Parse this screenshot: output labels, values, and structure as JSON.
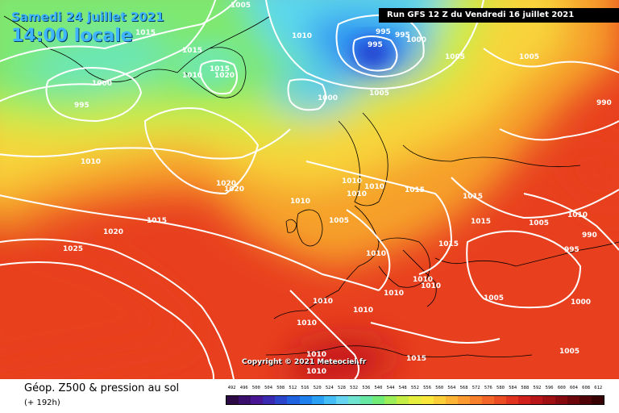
{
  "header": {
    "valid_date": "Samedi 24 juillet 2021",
    "local_time": "14:00 locale",
    "run_info": "Run GFS 12 Z du Vendredi 16 juillet 2021"
  },
  "map": {
    "subject": "Géopotentiel 500 hPa et pression au sol, Atlantique Nord / Europe",
    "isobar_labels": [
      "1005",
      "1015",
      "1015",
      "1010",
      "1015",
      "1020",
      "1000",
      "995",
      "1010",
      "1000",
      "995",
      "995",
      "1000",
      "1005",
      "1005",
      "995",
      "1005",
      "990",
      "1010",
      "1020",
      "1020",
      "1015",
      "1020",
      "1025",
      "1010",
      "1010",
      "1005",
      "1010",
      "1010",
      "1015",
      "1015",
      "1015",
      "1015",
      "1005",
      "1010",
      "990",
      "995",
      "1010",
      "1010",
      "1010",
      "1010",
      "1005",
      "1000",
      "1010",
      "1010",
      "1010",
      "1010",
      "1010",
      "1015",
      "1005"
    ],
    "copyright": "Copyright © 2021 Meteociel.fr"
  },
  "footer": {
    "title": "Géop. Z500 & pression au sol",
    "subtitle": "(+ 192h)",
    "scale_values": [
      "492",
      "496",
      "500",
      "504",
      "508",
      "512",
      "516",
      "520",
      "524",
      "528",
      "532",
      "536",
      "540",
      "544",
      "548",
      "552",
      "556",
      "560",
      "564",
      "568",
      "572",
      "576",
      "580",
      "584",
      "588",
      "592",
      "596",
      "600",
      "604",
      "608",
      "612"
    ],
    "scale_colors": [
      "#2b0a45",
      "#3a0f6b",
      "#4a1594",
      "#3a2ab0",
      "#2a45cc",
      "#1e62e0",
      "#1e80ee",
      "#2aa0f4",
      "#44bdf6",
      "#64d4f0",
      "#6ee4d0",
      "#66e8a4",
      "#72ec78",
      "#9aee5a",
      "#c4ee46",
      "#e6ee3e",
      "#fbe63c",
      "#fcce38",
      "#fcb434",
      "#fb9a30",
      "#f7802c",
      "#f26628",
      "#ec4c24",
      "#e03420",
      "#d0201c",
      "#b81618",
      "#9e1014",
      "#840a10",
      "#6a060c",
      "#500408",
      "#380204"
    ]
  }
}
